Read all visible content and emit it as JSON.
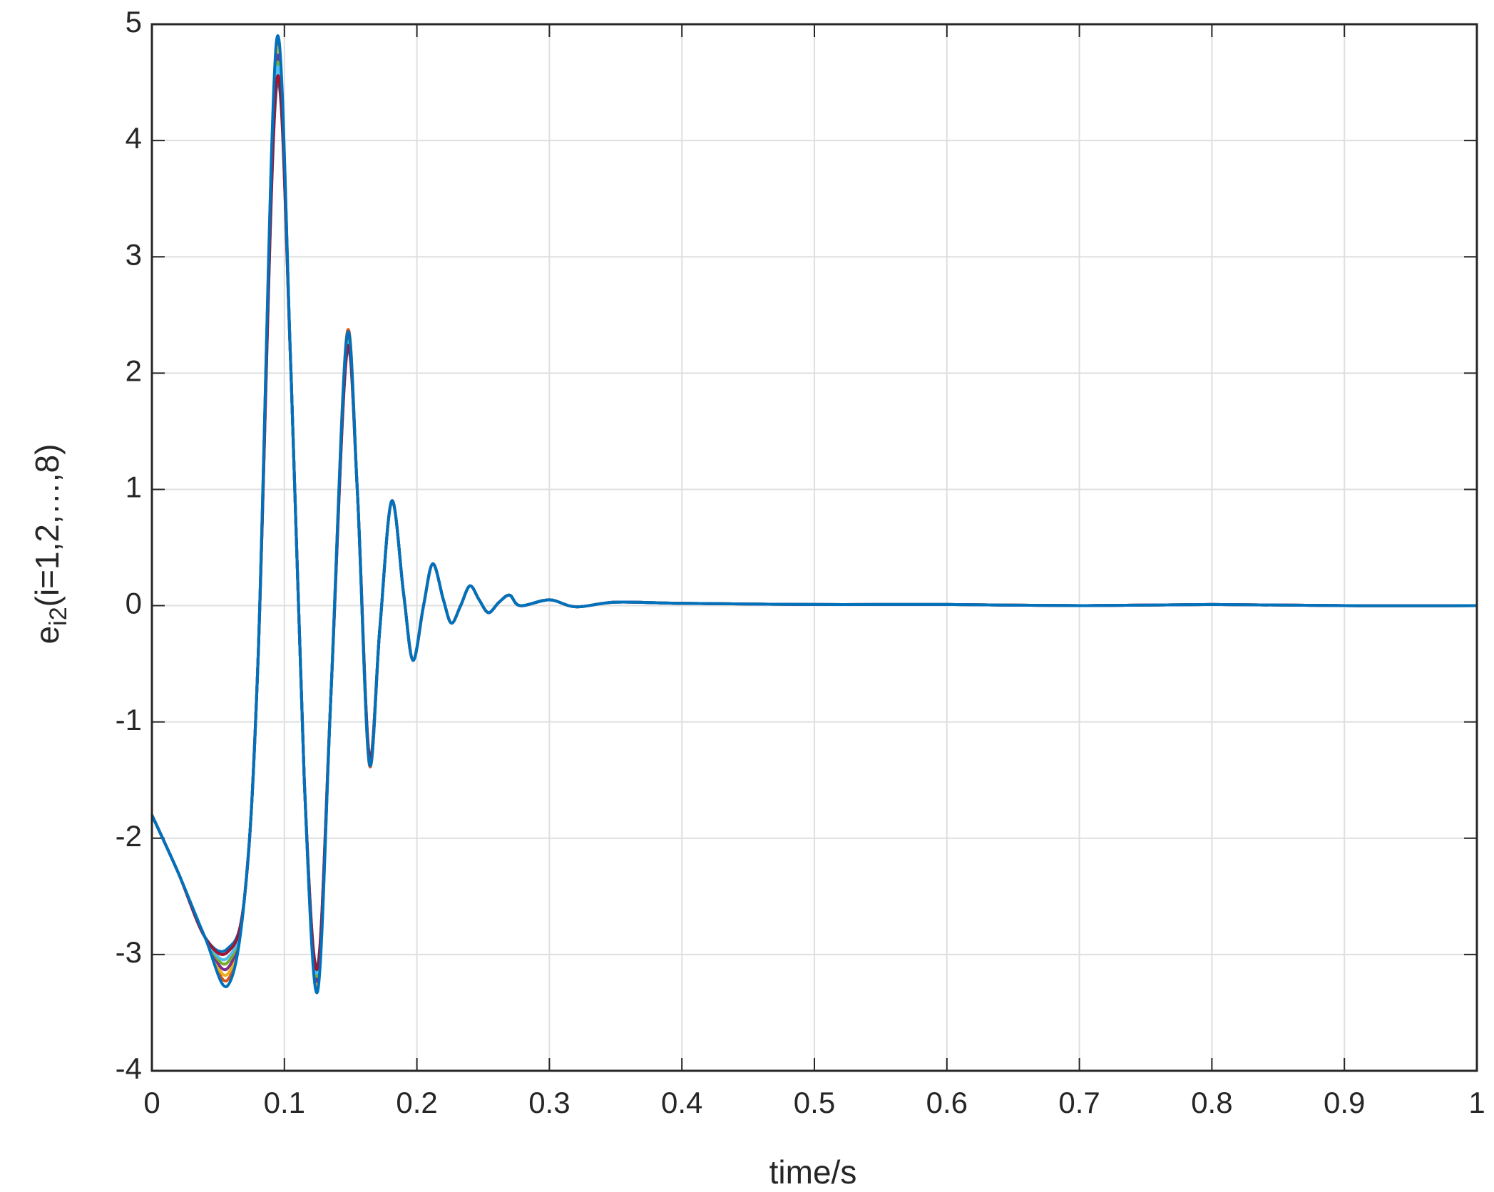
{
  "chart_data": {
    "type": "line",
    "xlabel": "time/s",
    "ylabel": {
      "base": "e",
      "sub": "i2",
      "rest": "(i=1,2,…,8)"
    },
    "x": [
      0,
      0.02,
      0.04,
      0.057,
      0.07,
      0.08,
      0.094,
      0.105,
      0.115,
      0.125,
      0.135,
      0.147,
      0.155,
      0.164,
      0.172,
      0.181,
      0.19,
      0.197,
      0.205,
      0.212,
      0.22,
      0.226,
      0.233,
      0.24,
      0.247,
      0.254,
      0.262,
      0.27,
      0.278,
      0.3,
      0.32,
      0.35,
      0.4,
      0.5,
      0.6,
      0.7,
      0.8,
      0.9,
      1.0
    ],
    "series": [
      {
        "color": "#0072BD",
        "values": [
          -1.8,
          -2.3,
          -2.85,
          -2.95,
          -2.5,
          -0.5,
          4.45,
          2.0,
          -1.5,
          -3.1,
          -0.8,
          2.15,
          1.0,
          -1.28,
          -0.2,
          0.9,
          0.1,
          -0.47,
          0.0,
          0.36,
          0.05,
          -0.15,
          0.0,
          0.17,
          0.05,
          -0.06,
          0.03,
          0.09,
          0.0,
          0.05,
          -0.01,
          0.03,
          0.02,
          0.01,
          0.01,
          0.0,
          0.01,
          0.0,
          0.0
        ]
      },
      {
        "color": "#D95319",
        "values": [
          -1.8,
          -2.3,
          -2.85,
          -3.22,
          -2.5,
          -0.5,
          4.8,
          2.0,
          -1.5,
          -3.28,
          -0.8,
          2.32,
          1.0,
          -1.36,
          -0.2,
          0.9,
          0.1,
          -0.47,
          0.0,
          0.36,
          0.05,
          -0.15,
          0.0,
          0.17,
          0.05,
          -0.06,
          0.03,
          0.09,
          0.0,
          0.05,
          -0.01,
          0.03,
          0.02,
          0.01,
          0.01,
          0.0,
          0.01,
          0.0,
          0.0
        ]
      },
      {
        "color": "#EDB120",
        "values": [
          -1.8,
          -2.3,
          -2.85,
          -3.17,
          -2.5,
          -0.5,
          4.75,
          2.0,
          -1.5,
          -3.25,
          -0.8,
          2.28,
          1.0,
          -1.34,
          -0.2,
          0.9,
          0.1,
          -0.47,
          0.0,
          0.36,
          0.05,
          -0.15,
          0.0,
          0.17,
          0.05,
          -0.06,
          0.03,
          0.09,
          0.0,
          0.05,
          -0.01,
          0.03,
          0.02,
          0.01,
          0.01,
          0.0,
          0.01,
          0.0,
          0.0
        ]
      },
      {
        "color": "#7E2F8E",
        "values": [
          -1.8,
          -2.3,
          -2.85,
          -3.12,
          -2.5,
          -0.5,
          4.68,
          2.0,
          -1.5,
          -3.22,
          -0.8,
          2.25,
          1.0,
          -1.33,
          -0.2,
          0.9,
          0.1,
          -0.47,
          0.0,
          0.36,
          0.05,
          -0.15,
          0.0,
          0.17,
          0.05,
          -0.06,
          0.03,
          0.09,
          0.0,
          0.05,
          -0.01,
          0.03,
          0.02,
          0.01,
          0.01,
          0.0,
          0.01,
          0.0,
          0.0
        ]
      },
      {
        "color": "#77AC30",
        "values": [
          -1.8,
          -2.3,
          -2.85,
          -3.07,
          -2.5,
          -0.5,
          4.62,
          2.0,
          -1.5,
          -3.18,
          -0.8,
          2.22,
          1.0,
          -1.31,
          -0.2,
          0.9,
          0.1,
          -0.47,
          0.0,
          0.36,
          0.05,
          -0.15,
          0.0,
          0.17,
          0.05,
          -0.06,
          0.03,
          0.09,
          0.0,
          0.05,
          -0.01,
          0.03,
          0.02,
          0.01,
          0.01,
          0.0,
          0.01,
          0.0,
          0.0
        ]
      },
      {
        "color": "#4DBEEE",
        "values": [
          -1.8,
          -2.3,
          -2.85,
          -3.03,
          -2.5,
          -0.5,
          4.58,
          2.0,
          -1.5,
          -3.15,
          -0.8,
          2.2,
          1.0,
          -1.3,
          -0.2,
          0.9,
          0.1,
          -0.47,
          0.0,
          0.36,
          0.05,
          -0.15,
          0.0,
          0.17,
          0.05,
          -0.06,
          0.03,
          0.09,
          0.0,
          0.05,
          -0.01,
          0.03,
          0.02,
          0.01,
          0.01,
          0.0,
          0.01,
          0.0,
          0.0
        ]
      },
      {
        "color": "#A2142F",
        "values": [
          -1.8,
          -2.3,
          -2.85,
          -2.98,
          -2.5,
          -0.5,
          4.5,
          2.0,
          -1.5,
          -3.12,
          -0.8,
          2.18,
          1.0,
          -1.29,
          -0.2,
          0.9,
          0.1,
          -0.47,
          0.0,
          0.36,
          0.05,
          -0.15,
          0.0,
          0.17,
          0.05,
          -0.06,
          0.03,
          0.09,
          0.0,
          0.05,
          -0.01,
          0.03,
          0.02,
          0.01,
          0.01,
          0.0,
          0.01,
          0.0,
          0.0
        ]
      },
      {
        "color": "#0072BD",
        "values": [
          -1.8,
          -2.3,
          -2.85,
          -3.27,
          -2.5,
          -0.5,
          4.85,
          2.0,
          -1.5,
          -3.32,
          -0.8,
          2.3,
          1.0,
          -1.35,
          -0.2,
          0.9,
          0.1,
          -0.47,
          0.0,
          0.36,
          0.05,
          -0.15,
          0.0,
          0.17,
          0.05,
          -0.06,
          0.03,
          0.09,
          0.0,
          0.05,
          -0.01,
          0.03,
          0.02,
          0.01,
          0.01,
          0.0,
          0.01,
          0.0,
          0.0
        ]
      }
    ],
    "xlim": [
      0,
      1
    ],
    "xticks": [
      0,
      0.1,
      0.2,
      0.3,
      0.4,
      0.5,
      0.6,
      0.7,
      0.8,
      0.9,
      1
    ],
    "ylim": [
      -4,
      5
    ],
    "yticks": [
      -4,
      -3,
      -2,
      -1,
      0,
      1,
      2,
      3,
      4,
      5
    ],
    "grid": true
  }
}
